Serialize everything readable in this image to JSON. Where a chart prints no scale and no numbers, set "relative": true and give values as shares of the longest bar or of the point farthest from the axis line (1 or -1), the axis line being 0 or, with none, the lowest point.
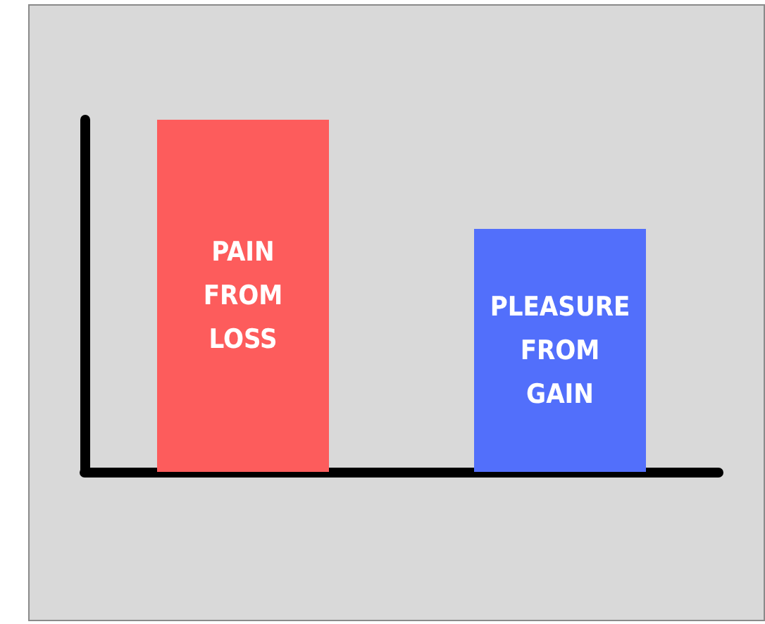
{
  "chart_data": {
    "type": "bar",
    "relative": true,
    "categories": [
      "PAIN FROM LOSS",
      "PLEASURE FROM GAIN"
    ],
    "values": [
      1,
      0.69
    ],
    "colors": [
      "#fd5c5c",
      "#526ffb"
    ],
    "grid": false
  }
}
